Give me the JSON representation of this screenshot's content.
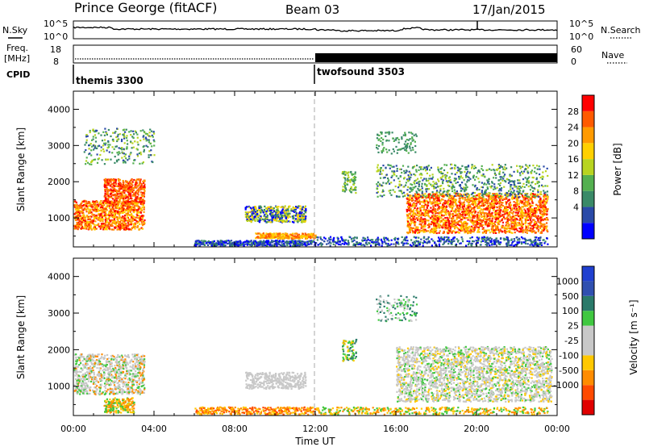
{
  "header": {
    "station": "Prince George (fitACF)",
    "beam": "Beam 03",
    "date": "17/Jan/2015"
  },
  "top_panels": {
    "nsky_label": "N.Sky",
    "nsearch_label": "N.Search",
    "noise_ticks_left": [
      "10^5",
      "10^0"
    ],
    "noise_ticks_right": [
      "10^5",
      "10^0"
    ],
    "freq_label_1": "Freq.",
    "freq_label_2": "[MHz]",
    "freq_ticks": [
      "18",
      "8"
    ],
    "nave_label": "Nave",
    "nave_ticks": [
      "60",
      "0"
    ],
    "cpid_label": "CPID",
    "cpid_1": "themis 3300",
    "cpid_2": "twofsound 3503"
  },
  "colors": {
    "power_scale": [
      "#0000ff",
      "#2a4aa8",
      "#3a8a68",
      "#54b050",
      "#b8d420",
      "#ffd000",
      "#ff9a00",
      "#ff5a00",
      "#ff0000"
    ],
    "velocity_scale": [
      "#e00000",
      "#ff4a00",
      "#ff8c00",
      "#ffc800",
      "#c8c8c8",
      "#c8c8c8",
      "#40c840",
      "#2a7a6a",
      "#3050b0",
      "#2040d0"
    ]
  },
  "chart_data": [
    {
      "type": "heatmap",
      "title": "",
      "ylabel": "Slant Range [km]",
      "xlabel": "",
      "ylim": [
        200,
        4500
      ],
      "y_ticks": [
        "1000",
        "2000",
        "3000",
        "4000"
      ],
      "colorbar_label": "Power [dB]",
      "colorbar_ticks": [
        "28",
        "24",
        "20",
        "16",
        "12",
        "8",
        "4"
      ],
      "clim": [
        0,
        32
      ]
    },
    {
      "type": "heatmap",
      "title": "",
      "ylabel": "Slant Range [km]",
      "xlabel": "Time UT",
      "ylim": [
        200,
        4500
      ],
      "x_ticks": [
        "00:00",
        "04:00",
        "08:00",
        "12:00",
        "16:00",
        "20:00",
        "00:00"
      ],
      "y_ticks": [
        "1000",
        "2000",
        "3000",
        "4000"
      ],
      "colorbar_label": "Velocity [m s⁻¹]",
      "colorbar_ticks": [
        "1000",
        "500",
        "100",
        "25",
        "-25",
        "-100",
        "-500",
        "-1000"
      ]
    }
  ]
}
